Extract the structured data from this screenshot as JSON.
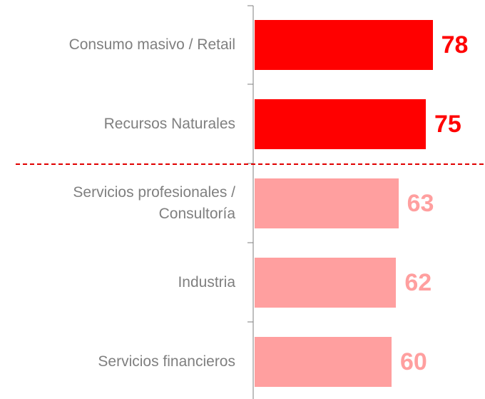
{
  "chart_data": {
    "type": "hbar",
    "categories": [
      "Consumo masivo / Retail",
      "Recursos Naturales",
      "Servicios profesionales / Consultoría",
      "Industria",
      "Servicios financieros"
    ],
    "values": [
      78,
      75,
      63,
      62,
      60
    ],
    "colors": [
      "#ff0000",
      "#ff0000",
      "#ff9f9f",
      "#ff9f9f",
      "#ff9f9f"
    ]
  }
}
